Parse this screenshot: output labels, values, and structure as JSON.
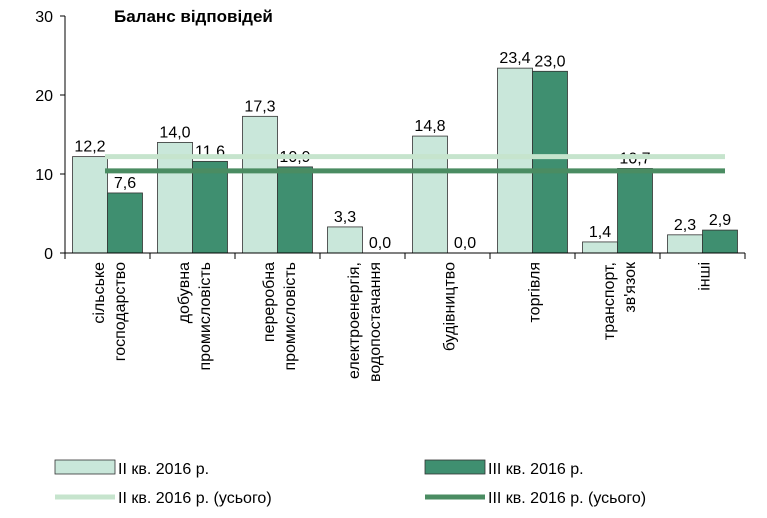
{
  "chart_data": {
    "type": "bar",
    "title": "Баланс відповідей",
    "categories": [
      [
        "сільське",
        "господарство"
      ],
      [
        "добувна",
        "промисловість"
      ],
      [
        "переробна",
        "промисловість"
      ],
      [
        "електроенергія,",
        "водопостачання"
      ],
      [
        "будівництво"
      ],
      [
        "торгівля"
      ],
      [
        "транспорт,",
        "зв'язок"
      ],
      [
        "інші"
      ]
    ],
    "series": [
      {
        "name": "II кв. 2016 р.",
        "color": "#c9e7da",
        "values": [
          12.2,
          14.0,
          17.3,
          3.3,
          14.8,
          23.4,
          1.4,
          2.3
        ],
        "value_labels": [
          "12,2",
          "14,0",
          "17,3",
          "3,3",
          "14,8",
          "23,4",
          "1,4",
          "2,3"
        ]
      },
      {
        "name": "III кв. 2016 р.",
        "color": "#3f8f70",
        "values": [
          7.6,
          11.6,
          10.9,
          0.0,
          0.0,
          23.0,
          10.7,
          2.9
        ],
        "value_labels": [
          "7,6",
          "11,6",
          "10,9",
          "0,0",
          "0,0",
          "23,0",
          "10,7",
          "2,9"
        ]
      }
    ],
    "reference_lines": [
      {
        "name": "II кв. 2016 р. (усього)",
        "color": "#c6e4cd",
        "value": 12.2
      },
      {
        "name": "III кв. 2016 р. (усього)",
        "color": "#4a8c62",
        "value": 10.4
      }
    ],
    "ylim": [
      0,
      30
    ],
    "yticks": [
      0,
      10,
      20,
      30
    ]
  }
}
